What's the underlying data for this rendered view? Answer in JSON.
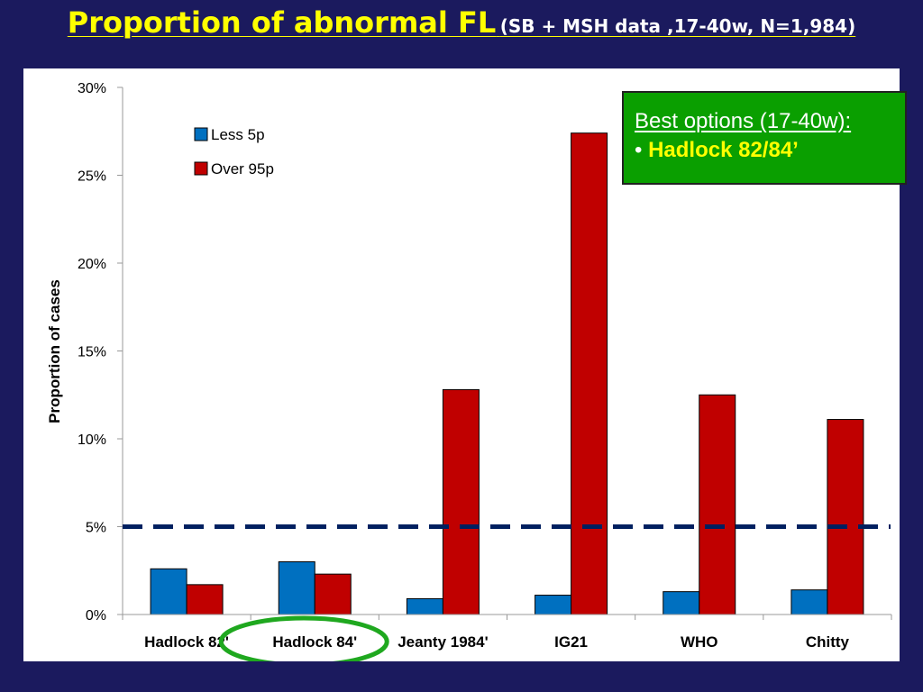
{
  "title": {
    "main": "Proportion of abnormal FL",
    "sub": "(SB + MSH data ,17-40w, N=1,984)"
  },
  "callout": {
    "heading": "Best options (17-40w):",
    "bullet_prefix": "•",
    "bullet_text": "Hadlock 82/84’"
  },
  "chart_data": {
    "type": "bar",
    "categories": [
      "Hadlock 82'",
      "Hadlock 84'",
      "Jeanty 1984'",
      "IG21",
      "WHO",
      "Chitty"
    ],
    "series": [
      {
        "name": "Less 5p",
        "color": "#0070c0",
        "values": [
          2.6,
          3.0,
          0.9,
          1.1,
          1.3,
          1.4
        ]
      },
      {
        "name": "Over 95p",
        "color": "#c00000",
        "values": [
          1.7,
          2.3,
          12.8,
          27.4,
          12.5,
          11.1
        ]
      }
    ],
    "ylabel": "Proportion of cases",
    "ylim": [
      0,
      30
    ],
    "yticks": [
      "0%",
      "5%",
      "10%",
      "15%",
      "20%",
      "25%",
      "30%"
    ],
    "reference_line": {
      "value": 5,
      "style": "dashed",
      "color": "#002060"
    },
    "highlighted_category": "Hadlock 84'",
    "highlight_color": "#1fa81f",
    "legend_position": "top-left",
    "grid": false
  }
}
